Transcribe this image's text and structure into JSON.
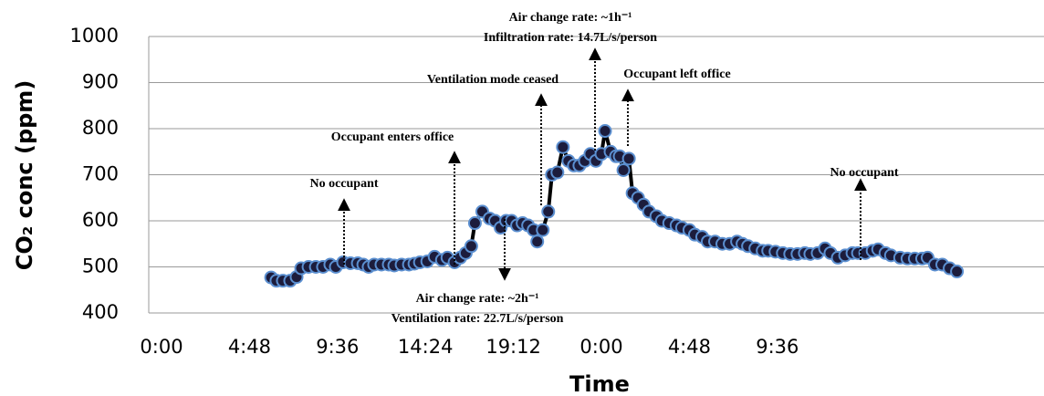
{
  "chart_data": {
    "type": "line",
    "y_label": "CO₂ conc (ppm)",
    "x_label": "Time",
    "x": [
      5.98,
      6.27,
      6.62,
      7.02,
      7.37,
      7.62,
      8.02,
      8.42,
      8.81,
      9.21,
      9.51,
      9.91,
      10.31,
      10.71,
      11.01,
      11.3,
      11.6,
      12.0,
      12.4,
      12.7,
      13.1,
      13.5,
      13.8,
      14.1,
      14.5,
      14.9,
      15.3,
      15.6,
      15.99,
      16.3,
      16.6,
      16.9,
      17.1,
      17.5,
      17.9,
      18.2,
      18.5,
      18.8,
      19.1,
      19.4,
      19.7,
      20.0,
      20.3,
      20.5,
      20.8,
      21.1,
      21.3,
      21.6,
      21.9,
      22.2,
      22.5,
      22.8,
      23.1,
      23.4,
      23.7,
      24.0,
      24.2,
      24.5,
      24.8,
      25.0,
      25.2,
      25.5,
      25.7,
      26.0,
      26.3,
      26.6,
      27.0,
      27.3,
      27.7,
      28.1,
      28.4,
      28.8,
      29.1,
      29.5,
      29.8,
      30.2,
      30.6,
      31.0,
      31.4,
      31.7,
      32.0,
      32.4,
      32.8,
      33.1,
      33.5,
      33.9,
      34.3,
      34.7,
      35.1,
      35.4,
      35.8,
      36.2,
      36.5,
      36.9,
      37.3,
      37.7,
      38.0,
      38.4,
      38.8,
      39.1,
      39.5,
      39.8,
      40.3,
      40.7,
      41.1,
      41.5,
      41.8,
      42.2,
      42.6,
      43.0,
      43.4
    ],
    "values": [
      477,
      470,
      470,
      470,
      478,
      497,
      500,
      500,
      500,
      505,
      500,
      510,
      508,
      508,
      505,
      500,
      505,
      505,
      505,
      503,
      505,
      505,
      507,
      510,
      512,
      522,
      515,
      520,
      510,
      520,
      530,
      545,
      595,
      620,
      605,
      600,
      585,
      600,
      600,
      590,
      595,
      590,
      580,
      555,
      580,
      620,
      700,
      705,
      760,
      730,
      720,
      720,
      730,
      745,
      730,
      745,
      795,
      750,
      740,
      740,
      710,
      735,
      660,
      650,
      635,
      620,
      610,
      600,
      595,
      590,
      585,
      580,
      570,
      565,
      555,
      555,
      550,
      550,
      555,
      550,
      545,
      540,
      535,
      535,
      533,
      530,
      528,
      528,
      530,
      528,
      530,
      540,
      530,
      520,
      525,
      530,
      530,
      530,
      535,
      538,
      530,
      525,
      520,
      518,
      518,
      518,
      520,
      505,
      505,
      497,
      490
    ],
    "color": "#000000",
    "marker_fill": "#1c1c3c",
    "marker_edge": "#5b8fd0",
    "xlim": [
      0,
      48
    ],
    "xticks": [
      {
        "value": 0,
        "label": "0:00"
      },
      {
        "value": 4.8,
        "label": "4:48"
      },
      {
        "value": 9.6,
        "label": "9:36"
      },
      {
        "value": 14.4,
        "label": "14:24"
      },
      {
        "value": 19.2,
        "label": "19:12"
      },
      {
        "value": 24,
        "label": "0:00"
      },
      {
        "value": 28.8,
        "label": "4:48"
      },
      {
        "value": 33.6,
        "label": "9:36"
      }
    ],
    "ylim": [
      400,
      1000
    ],
    "yticks": [
      400,
      500,
      600,
      700,
      800,
      900,
      1000
    ],
    "grid": true,
    "annotations": [
      {
        "lines": [
          "No occupant"
        ]
      },
      {
        "lines": [
          "Occupant enters office"
        ]
      },
      {
        "lines": [
          "Ventilation mode ceased"
        ]
      },
      {
        "lines": [
          "Air change rate: ~1h⁻¹",
          "Infiltration rate: 14.7L/s/person"
        ]
      },
      {
        "lines": [
          "Occupant left office"
        ]
      },
      {
        "lines": [
          "No occupant"
        ]
      },
      {
        "lines": [
          "Air change rate: ~2h⁻¹",
          "Ventilation rate: 22.7L/s/person"
        ]
      }
    ]
  }
}
